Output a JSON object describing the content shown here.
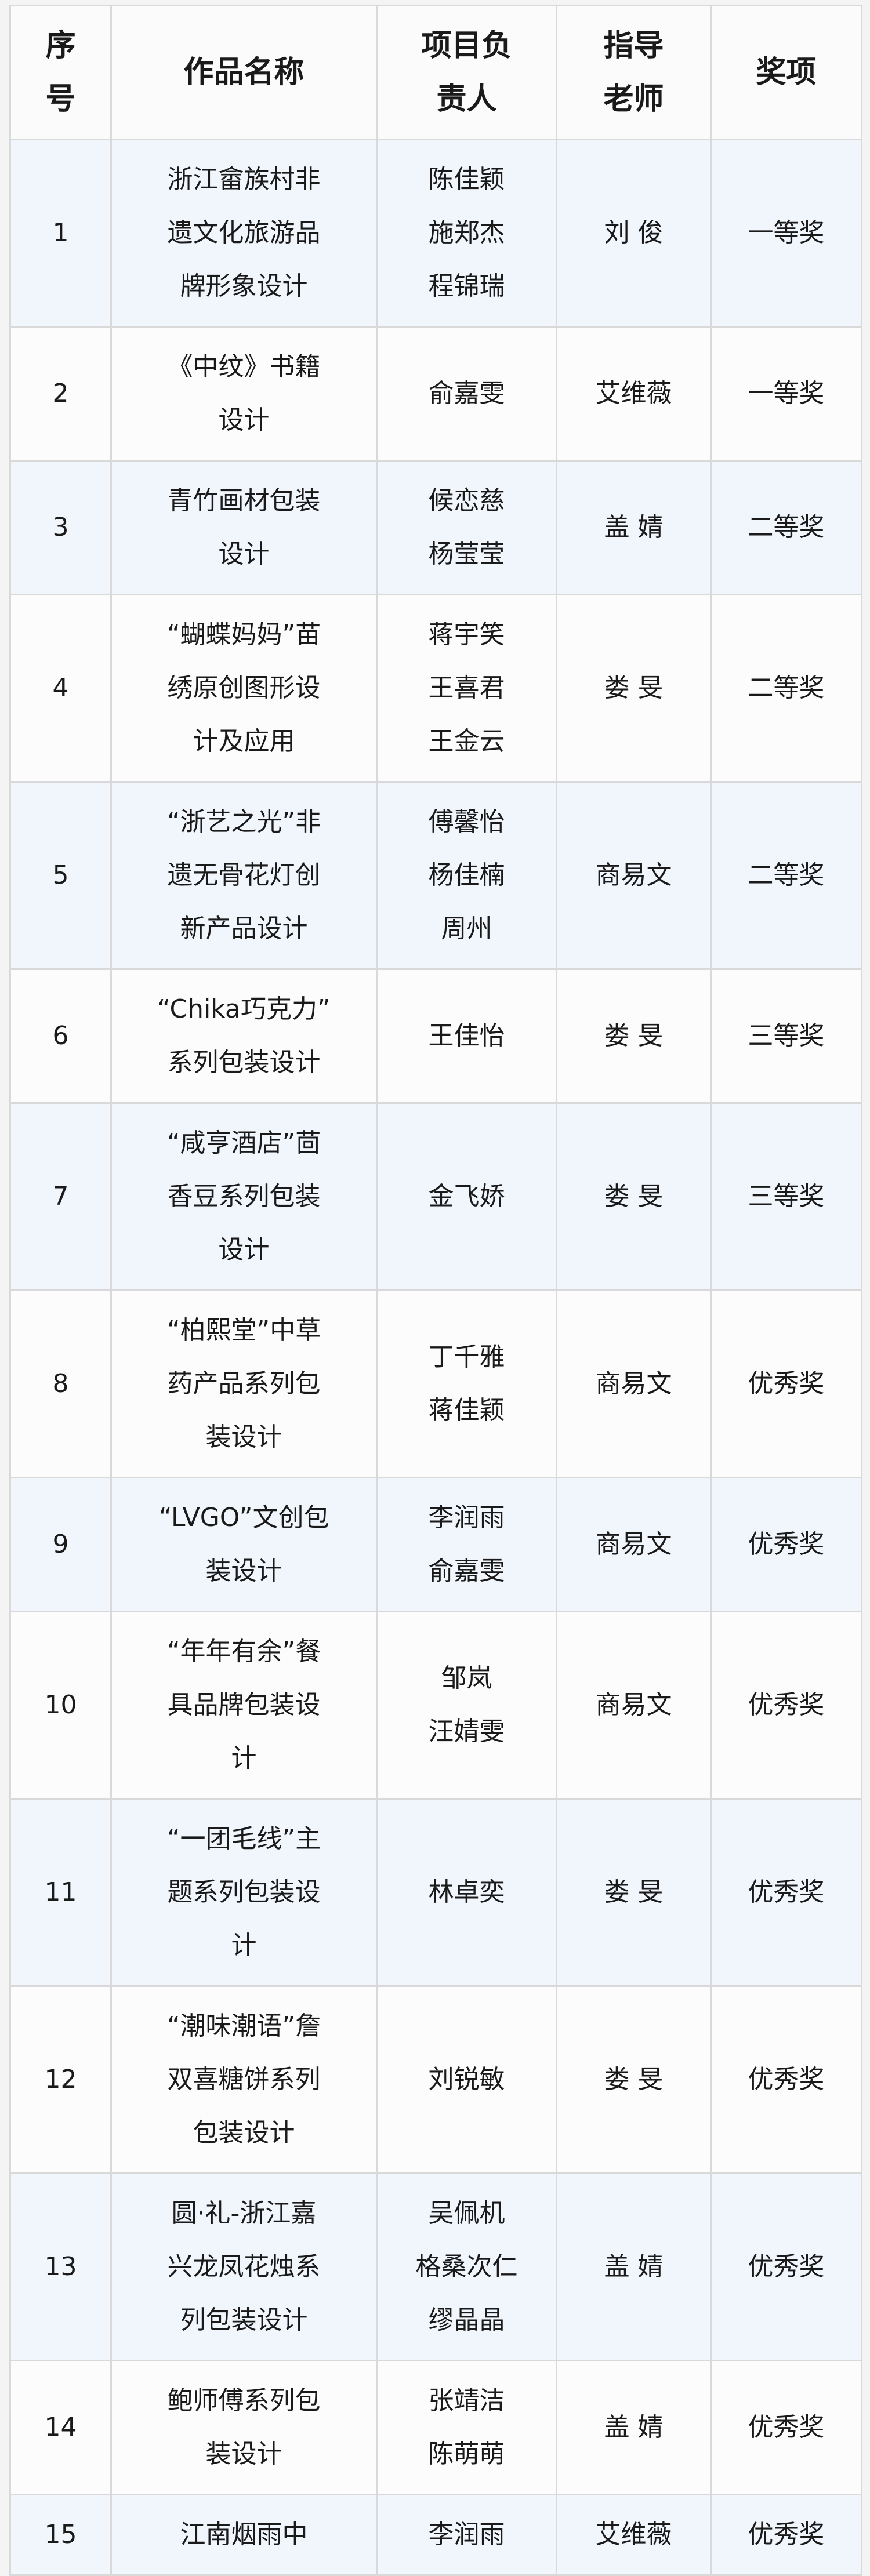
{
  "table": {
    "headers": [
      "序\n号",
      "作品名称",
      "项目负\n责人",
      "指导\n老师",
      "奖项"
    ],
    "rows": [
      {
        "no": "1",
        "title": "浙江畲族村非\n遗文化旅游品\n牌形象设计",
        "leaders": "陈佳颖\n施郑杰\n程锦瑞",
        "advisor": "刘 俊",
        "award": "一等奖"
      },
      {
        "no": "2",
        "title": "《中纹》书籍\n设计",
        "leaders": "俞嘉雯",
        "advisor": "艾维薇",
        "award": "一等奖"
      },
      {
        "no": "3",
        "title": "青竹画材包装\n设计",
        "leaders": "候恋慈\n杨莹莹",
        "advisor": "盖 婧",
        "award": "二等奖"
      },
      {
        "no": "4",
        "title": "“蝴蝶妈妈”苗\n绣原创图形设\n计及应用",
        "leaders": "蒋宇笑\n王喜君\n王金云",
        "advisor": "娄 旻",
        "award": "二等奖"
      },
      {
        "no": "5",
        "title": "“浙艺之光”非\n遗无骨花灯创\n新产品设计",
        "leaders": "傅馨怡\n杨佳楠\n周州",
        "advisor": "商易文",
        "award": "二等奖"
      },
      {
        "no": "6",
        "title": "“Chika巧克力”\n系列包装设计",
        "leaders": "王佳怡",
        "advisor": "娄 旻",
        "award": "三等奖"
      },
      {
        "no": "7",
        "title": "“咸亨酒店”茴\n香豆系列包装\n设计",
        "leaders": "金飞娇",
        "advisor": "娄 旻",
        "award": "三等奖"
      },
      {
        "no": "8",
        "title": "“柏熙堂”中草\n药产品系列包\n装设计",
        "leaders": "丁千雅\n蒋佳颖",
        "advisor": "商易文",
        "award": "优秀奖"
      },
      {
        "no": "9",
        "title": "“LVGO”文创包\n装设计",
        "leaders": "李润雨\n俞嘉雯",
        "advisor": "商易文",
        "award": "优秀奖"
      },
      {
        "no": "10",
        "title": "“年年有余”餐\n具品牌包装设\n计",
        "leaders": "邹岚\n汪婧雯",
        "advisor": "商易文",
        "award": "优秀奖"
      },
      {
        "no": "11",
        "title": "“一团毛线”主\n题系列包装设\n计",
        "leaders": "林卓奕",
        "advisor": "娄 旻",
        "award": "优秀奖"
      },
      {
        "no": "12",
        "title": "“潮味潮语”詹\n双喜糖饼系列\n包装设计",
        "leaders": "刘锐敏",
        "advisor": "娄 旻",
        "award": "优秀奖"
      },
      {
        "no": "13",
        "title": "圆·礼-浙江嘉\n兴龙凤花烛系\n列包装设计",
        "leaders": "吴佩机\n格桑次仁\n缪晶晶",
        "advisor": "盖 婧",
        "award": "优秀奖"
      },
      {
        "no": "14",
        "title": "鲍师傅系列包\n装设计",
        "leaders": "张靖洁\n陈萌萌",
        "advisor": "盖 婧",
        "award": "优秀奖"
      },
      {
        "no": "15",
        "title": "江南烟雨中",
        "leaders": "李润雨",
        "advisor": "艾维薇",
        "award": "优秀奖"
      }
    ]
  }
}
